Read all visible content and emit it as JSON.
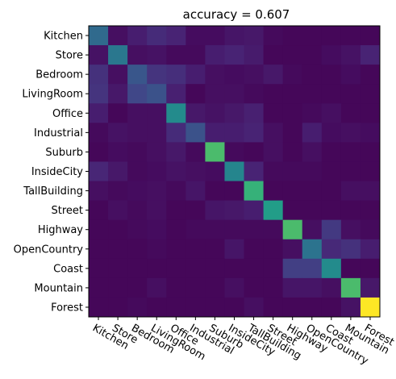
{
  "chart_data": {
    "type": "heatmap",
    "title": "accuracy = 0.607",
    "xlabel": "",
    "ylabel": "",
    "categories": [
      "Kitchen",
      "Store",
      "Bedroom",
      "LivingRoom",
      "Office",
      "Industrial",
      "Suburb",
      "InsideCity",
      "TallBuilding",
      "Street",
      "Highway",
      "OpenCountry",
      "Coast",
      "Mountain",
      "Forest"
    ],
    "colormap": "viridis",
    "vmin": 0,
    "vmax": 0.95,
    "grid": false,
    "matrix": [
      [
        0.41,
        0.05,
        0.1,
        0.15,
        0.12,
        0.04,
        0.04,
        0.07,
        0.08,
        0.03,
        0.02,
        0.02,
        0.02,
        0.02,
        0.02
      ],
      [
        0.06,
        0.47,
        0.05,
        0.06,
        0.03,
        0.03,
        0.1,
        0.12,
        0.09,
        0.02,
        0.02,
        0.02,
        0.04,
        0.06,
        0.12
      ],
      [
        0.17,
        0.05,
        0.32,
        0.18,
        0.16,
        0.1,
        0.05,
        0.04,
        0.05,
        0.08,
        0.03,
        0.02,
        0.02,
        0.04,
        0.02
      ],
      [
        0.18,
        0.08,
        0.25,
        0.3,
        0.11,
        0.02,
        0.05,
        0.05,
        0.03,
        0.02,
        0.02,
        0.02,
        0.02,
        0.02,
        0.02
      ],
      [
        0.1,
        0.02,
        0.05,
        0.05,
        0.57,
        0.08,
        0.06,
        0.08,
        0.11,
        0.02,
        0.02,
        0.03,
        0.05,
        0.02,
        0.02
      ],
      [
        0.03,
        0.06,
        0.05,
        0.05,
        0.15,
        0.3,
        0.1,
        0.1,
        0.12,
        0.05,
        0.02,
        0.1,
        0.04,
        0.05,
        0.04
      ],
      [
        0.02,
        0.04,
        0.03,
        0.05,
        0.08,
        0.03,
        0.77,
        0.03,
        0.02,
        0.05,
        0.02,
        0.05,
        0.02,
        0.02,
        0.02
      ],
      [
        0.13,
        0.08,
        0.03,
        0.04,
        0.06,
        0.05,
        0.04,
        0.54,
        0.12,
        0.03,
        0.03,
        0.03,
        0.02,
        0.02,
        0.02
      ],
      [
        0.05,
        0.03,
        0.04,
        0.05,
        0.03,
        0.07,
        0.02,
        0.02,
        0.74,
        0.02,
        0.02,
        0.02,
        0.02,
        0.05,
        0.05
      ],
      [
        0.02,
        0.05,
        0.03,
        0.05,
        0.02,
        0.02,
        0.07,
        0.08,
        0.1,
        0.66,
        0.02,
        0.02,
        0.02,
        0.02,
        0.02
      ],
      [
        0.02,
        0.02,
        0.03,
        0.04,
        0.02,
        0.03,
        0.03,
        0.03,
        0.03,
        0.03,
        0.77,
        0.05,
        0.2,
        0.05,
        0.03
      ],
      [
        0.02,
        0.02,
        0.02,
        0.03,
        0.02,
        0.02,
        0.02,
        0.07,
        0.02,
        0.02,
        0.05,
        0.45,
        0.14,
        0.17,
        0.1
      ],
      [
        0.02,
        0.02,
        0.02,
        0.02,
        0.02,
        0.02,
        0.02,
        0.02,
        0.02,
        0.02,
        0.22,
        0.22,
        0.57,
        0.02,
        0.02
      ],
      [
        0.02,
        0.02,
        0.02,
        0.05,
        0.02,
        0.02,
        0.02,
        0.05,
        0.02,
        0.02,
        0.07,
        0.07,
        0.05,
        0.77,
        0.08
      ],
      [
        0.02,
        0.02,
        0.03,
        0.02,
        0.02,
        0.02,
        0.02,
        0.02,
        0.05,
        0.02,
        0.02,
        0.02,
        0.02,
        0.06,
        0.95
      ]
    ]
  }
}
